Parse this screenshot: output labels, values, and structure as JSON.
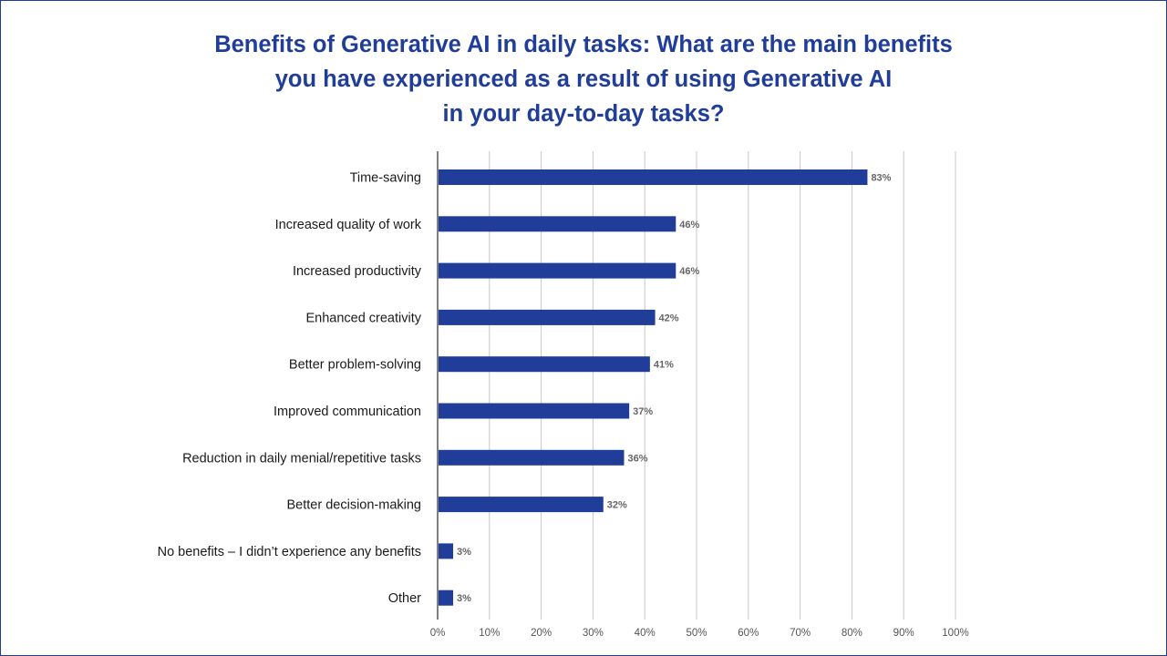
{
  "chart_data": {
    "type": "bar",
    "orientation": "horizontal",
    "title_lines": [
      "Benefits of Generative AI in daily tasks: What are the main benefits",
      "you have experienced as a result of using Generative AI",
      "in your day-to-day tasks?"
    ],
    "categories": [
      "Time-saving",
      "Increased quality of work",
      "Increased productivity",
      "Enhanced creativity",
      "Better problem-solving",
      "Improved communication",
      "Reduction in daily menial/repetitive tasks",
      "Better decision-making",
      "No benefits – I didn’t experience any benefits",
      "Other"
    ],
    "values": [
      83,
      46,
      46,
      42,
      41,
      37,
      36,
      32,
      3,
      3
    ],
    "value_labels": [
      "83%",
      "46%",
      "46%",
      "42%",
      "41%",
      "37%",
      "36%",
      "32%",
      "3%",
      "3%"
    ],
    "xlim": [
      0,
      100
    ],
    "x_ticks": [
      "0%",
      "10%",
      "20%",
      "30%",
      "40%",
      "50%",
      "60%",
      "70%",
      "80%",
      "90%",
      "100%"
    ],
    "grid": "vertical",
    "bar_color": "#1f3d99",
    "title_color": "#1f3d99"
  }
}
